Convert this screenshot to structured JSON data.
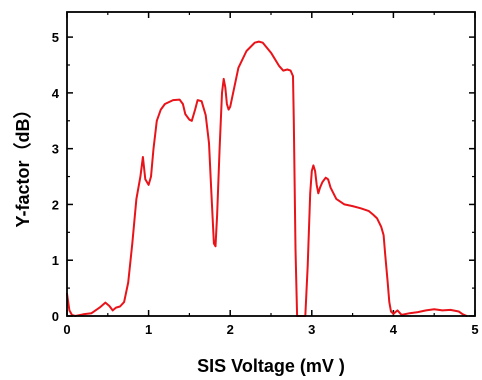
{
  "chart_data": {
    "type": "line",
    "xlabel": "SIS Voltage (mV )",
    "ylabel": "Y-factor（dB）",
    "xlim": [
      0,
      5
    ],
    "ylim": [
      0,
      5.45
    ],
    "xticks": [
      "0",
      "1",
      "2",
      "3",
      "4",
      "5"
    ],
    "yticks": [
      "0",
      "1",
      "2",
      "3",
      "4",
      "5"
    ],
    "grid": false,
    "line_color": "#e8141a",
    "series": [
      {
        "x": [
          0.0,
          0.03,
          0.06,
          0.1,
          0.2,
          0.3,
          0.4,
          0.47,
          0.52,
          0.56,
          0.6,
          0.65,
          0.7,
          0.75,
          0.8,
          0.85,
          0.9,
          0.93,
          0.96,
          1.0,
          1.03,
          1.06,
          1.1,
          1.15,
          1.2,
          1.3,
          1.38,
          1.42,
          1.45,
          1.5,
          1.53,
          1.57,
          1.6,
          1.65,
          1.7,
          1.74,
          1.77,
          1.8,
          1.82,
          1.84,
          1.87,
          1.9,
          1.92,
          1.94,
          1.96,
          1.98,
          2.0,
          2.05,
          2.1,
          2.2,
          2.3,
          2.35,
          2.4,
          2.5,
          2.6,
          2.65,
          2.7,
          2.74,
          2.77,
          2.78,
          2.8,
          2.82,
          2.85,
          2.9,
          2.92,
          2.95,
          2.98,
          3.0,
          3.02,
          3.04,
          3.06,
          3.08,
          3.1,
          3.13,
          3.17,
          3.2,
          3.23,
          3.3,
          3.4,
          3.5,
          3.6,
          3.7,
          3.75,
          3.8,
          3.85,
          3.88,
          3.9,
          3.93,
          3.95,
          3.97,
          4.0,
          4.05,
          4.1,
          4.2,
          4.3,
          4.4,
          4.5,
          4.6,
          4.7,
          4.8,
          4.85,
          4.9
        ],
        "y": [
          0.4,
          0.1,
          0.02,
          0.0,
          0.03,
          0.05,
          0.15,
          0.24,
          0.18,
          0.1,
          0.15,
          0.17,
          0.25,
          0.6,
          1.3,
          2.1,
          2.5,
          2.85,
          2.45,
          2.35,
          2.5,
          3.0,
          3.5,
          3.7,
          3.8,
          3.87,
          3.88,
          3.8,
          3.62,
          3.52,
          3.5,
          3.7,
          3.87,
          3.85,
          3.6,
          3.1,
          2.2,
          1.3,
          1.25,
          1.8,
          3.0,
          4.0,
          4.25,
          4.1,
          3.8,
          3.7,
          3.75,
          4.1,
          4.45,
          4.75,
          4.9,
          4.92,
          4.9,
          4.72,
          4.48,
          4.4,
          4.42,
          4.4,
          4.3,
          3.5,
          1.2,
          0.0,
          0.0,
          0.0,
          0.0,
          0.9,
          2.2,
          2.6,
          2.7,
          2.6,
          2.35,
          2.2,
          2.3,
          2.4,
          2.48,
          2.45,
          2.3,
          2.1,
          2.0,
          1.97,
          1.93,
          1.88,
          1.82,
          1.75,
          1.6,
          1.45,
          1.1,
          0.6,
          0.25,
          0.08,
          0.04,
          0.1,
          0.02,
          0.05,
          0.07,
          0.1,
          0.12,
          0.1,
          0.11,
          0.08,
          0.03,
          0.0
        ]
      }
    ]
  }
}
